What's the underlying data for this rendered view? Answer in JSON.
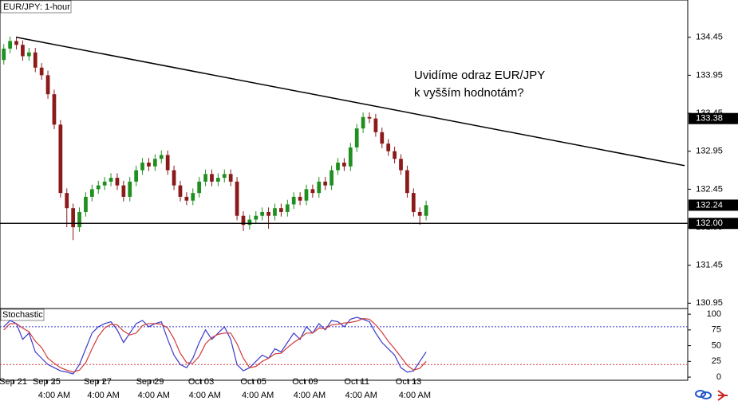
{
  "chart_data": [
    {
      "type": "candlestick",
      "title": "EUR/JPY: 1-hour",
      "annotation": [
        "Uvidíme odraz EUR/JPY",
        "k vyšším hodnotám?"
      ],
      "x": [
        0,
        1,
        2,
        3,
        4,
        5,
        6,
        7,
        8,
        9,
        10,
        11,
        12,
        13,
        14,
        15,
        16,
        17,
        18,
        19,
        20,
        21,
        22,
        23,
        24,
        25,
        26,
        27,
        28,
        29,
        30,
        31,
        32,
        33,
        34,
        35,
        36,
        37,
        38,
        39,
        40,
        41,
        42,
        43,
        44,
        45,
        46,
        47,
        48,
        49,
        50,
        51,
        52,
        53,
        54,
        55,
        56,
        57,
        58,
        59,
        60,
        61,
        62,
        63,
        64,
        65,
        66,
        67
      ],
      "open": [
        134.15,
        134.3,
        134.4,
        134.35,
        134.2,
        134.25,
        134.05,
        133.95,
        133.7,
        133.3,
        132.4,
        132.2,
        131.95,
        132.15,
        132.35,
        132.45,
        132.5,
        132.55,
        132.6,
        132.5,
        132.35,
        132.55,
        132.7,
        132.8,
        132.75,
        132.85,
        132.9,
        132.7,
        132.5,
        132.35,
        132.3,
        132.4,
        132.55,
        132.65,
        132.55,
        132.6,
        132.65,
        132.55,
        132.1,
        131.98,
        132.05,
        132.1,
        132.15,
        132.1,
        132.2,
        132.15,
        132.25,
        132.35,
        132.3,
        132.45,
        132.4,
        132.55,
        132.5,
        132.7,
        132.8,
        132.75,
        133.0,
        133.25,
        133.4,
        133.38,
        133.2,
        133.05,
        132.95,
        132.85,
        132.7,
        132.4,
        132.15,
        132.1
      ],
      "high": [
        134.36,
        134.46,
        134.46,
        134.41,
        134.31,
        134.31,
        134.11,
        134.01,
        133.76,
        133.36,
        132.46,
        132.26,
        132.21,
        132.41,
        132.51,
        132.56,
        132.61,
        132.66,
        132.66,
        132.56,
        132.61,
        132.76,
        132.86,
        132.86,
        132.91,
        132.96,
        132.96,
        132.76,
        132.56,
        132.41,
        132.46,
        132.61,
        132.71,
        132.71,
        132.66,
        132.71,
        132.71,
        132.61,
        132.16,
        132.11,
        132.16,
        132.21,
        132.21,
        132.26,
        132.26,
        132.31,
        132.41,
        132.41,
        132.51,
        132.51,
        132.61,
        132.61,
        132.76,
        132.86,
        132.86,
        133.06,
        133.31,
        133.46,
        133.46,
        133.44,
        133.26,
        133.11,
        133.01,
        132.91,
        132.76,
        132.46,
        132.21,
        132.3
      ],
      "low": [
        134.09,
        134.24,
        134.29,
        134.14,
        134.14,
        133.99,
        133.89,
        133.64,
        133.24,
        132.34,
        131.95,
        131.78,
        131.89,
        132.09,
        132.29,
        132.39,
        132.44,
        132.49,
        132.44,
        132.29,
        132.29,
        132.49,
        132.64,
        132.69,
        132.69,
        132.79,
        132.64,
        132.44,
        132.29,
        132.24,
        132.24,
        132.34,
        132.49,
        132.49,
        132.49,
        132.54,
        132.49,
        132.04,
        131.9,
        131.92,
        131.99,
        132.04,
        131.93,
        132.04,
        132.09,
        132.09,
        132.19,
        132.24,
        132.24,
        132.34,
        132.34,
        132.44,
        132.44,
        132.64,
        132.69,
        132.69,
        132.94,
        133.19,
        133.32,
        133.14,
        132.99,
        132.89,
        132.79,
        132.64,
        132.34,
        132.09,
        131.98,
        132.04
      ],
      "close": [
        134.3,
        134.4,
        134.35,
        134.2,
        134.25,
        134.05,
        133.95,
        133.7,
        133.3,
        132.4,
        132.2,
        131.95,
        132.15,
        132.35,
        132.45,
        132.5,
        132.55,
        132.6,
        132.5,
        132.35,
        132.55,
        132.7,
        132.8,
        132.75,
        132.85,
        132.9,
        132.7,
        132.5,
        132.35,
        132.3,
        132.4,
        132.55,
        132.65,
        132.55,
        132.6,
        132.65,
        132.55,
        132.1,
        131.98,
        132.05,
        132.1,
        132.15,
        132.1,
        132.2,
        132.15,
        132.25,
        132.35,
        132.3,
        132.45,
        132.4,
        132.55,
        132.5,
        132.7,
        132.8,
        132.75,
        133.0,
        133.25,
        133.4,
        133.38,
        133.2,
        133.05,
        132.95,
        132.85,
        132.7,
        132.4,
        132.15,
        132.1,
        132.24
      ],
      "up_color": "#1f8f1f",
      "down_color": "#8b1a1a",
      "trendline": {
        "x": [
          2,
          108
        ],
        "y": [
          134.45,
          132.76
        ]
      },
      "hline": 132.0,
      "price_labels": [
        133.38,
        132.24,
        {
          "value": 132.0,
          "label": "132.00"
        }
      ],
      "xlim": [
        -0.6,
        108.5
      ],
      "ylim": [
        130.88,
        134.94
      ],
      "yticks": [
        134.45,
        133.95,
        133.45,
        132.95,
        132.45,
        131.95,
        131.45,
        130.95
      ],
      "xticks": [
        {
          "value": 1.5,
          "label": "Sep 21"
        },
        {
          "value": 6.8,
          "label": "Sep 25"
        },
        {
          "value": 14.9,
          "label": "Sep 27"
        },
        {
          "value": 23.2,
          "label": "Sep 29"
        },
        {
          "value": 31.3,
          "label": "Oct 03"
        },
        {
          "value": 39.6,
          "label": "Oct 05"
        },
        {
          "value": 47.8,
          "label": "Oct 09"
        },
        {
          "value": 56,
          "label": "Oct 11"
        },
        {
          "value": 64.2,
          "label": "Oct 13"
        }
      ],
      "xticks_time": [
        {
          "value": 8,
          "label": "4:00 AM"
        },
        {
          "value": 15.8,
          "label": "4:00 AM"
        },
        {
          "value": 23.8,
          "label": "4:00 AM"
        },
        {
          "value": 31.9,
          "label": "4:00 AM"
        },
        {
          "value": 40.3,
          "label": "4:00 AM"
        },
        {
          "value": 48.5,
          "label": "4:00 AM"
        },
        {
          "value": 56.7,
          "label": "4:00 AM"
        },
        {
          "value": 65.2,
          "label": "4:00 AM"
        }
      ]
    },
    {
      "type": "line",
      "title": "Stochastic",
      "series": [
        {
          "color": "#3a3acc",
          "values": [
            80,
            90,
            85,
            60,
            70,
            40,
            30,
            20,
            15,
            10,
            8,
            5,
            20,
            45,
            70,
            80,
            85,
            88,
            75,
            55,
            70,
            85,
            90,
            80,
            85,
            88,
            60,
            35,
            20,
            15,
            30,
            55,
            75,
            60,
            70,
            80,
            60,
            20,
            10,
            15,
            25,
            35,
            30,
            45,
            40,
            55,
            70,
            60,
            80,
            70,
            85,
            75,
            90,
            88,
            80,
            92,
            95,
            92,
            88,
            70,
            55,
            45,
            35,
            15,
            8,
            10,
            25,
            40
          ]
        },
        {
          "color": "#d23a3a",
          "values": [
            75,
            85,
            85,
            78,
            72,
            57,
            47,
            30,
            22,
            15,
            11,
            8,
            11,
            23,
            45,
            65,
            78,
            84,
            83,
            73,
            67,
            70,
            82,
            85,
            85,
            84,
            78,
            61,
            38,
            23,
            22,
            33,
            53,
            63,
            68,
            70,
            70,
            53,
            30,
            15,
            17,
            25,
            30,
            37,
            38,
            47,
            55,
            62,
            70,
            70,
            78,
            77,
            83,
            84,
            86,
            87,
            89,
            93,
            92,
            83,
            71,
            57,
            45,
            32,
            19,
            11,
            14,
            25
          ]
        }
      ],
      "levels": [
        {
          "value": 80,
          "color": "#3a3acc"
        },
        {
          "value": 20,
          "color": "#d23a3a"
        }
      ],
      "ylim": [
        -5,
        109
      ],
      "yticks": [
        100,
        75,
        50,
        25,
        0
      ]
    }
  ]
}
